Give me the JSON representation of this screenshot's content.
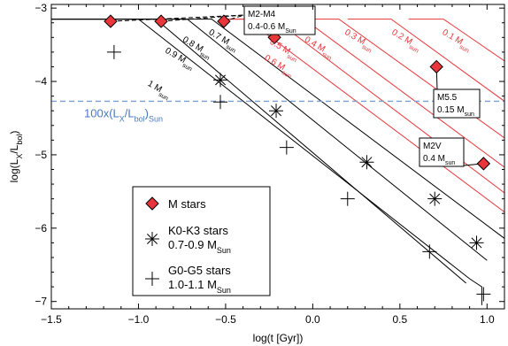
{
  "chart_data": {
    "type": "line",
    "title": "",
    "xlabel": "log(t [Gyr])",
    "ylabel": "log(L_X/L_bol)",
    "xlim": [
      -1.5,
      1.1
    ],
    "ylim": [
      -7.1,
      -2.95
    ],
    "xticks": [
      -1.5,
      -1.0,
      -0.5,
      0.0,
      0.5,
      1.0
    ],
    "xtick_labels": [
      "−1.5",
      "−1.0",
      "−0.5",
      "0.0",
      "0.5",
      "1.0"
    ],
    "yticks": [
      -3,
      -4,
      -5,
      -6,
      -7
    ],
    "ytick_labels": [
      "−3",
      "−4",
      "−5",
      "−6",
      "−7"
    ],
    "grid": false,
    "legend_position": "bottom-left",
    "colors": {
      "axes": "#000000",
      "black_tracks": "#000000",
      "red_tracks": "#e8363a",
      "marker_red": "#e8363a",
      "reference_line": "#7b9fd4"
    },
    "reference_line": {
      "y": -4.27,
      "label": "100x(L",
      "label_sub1": "X",
      "label_mid": "/L",
      "label_sub2": "bol",
      "label_end": ")",
      "label_sub3": "Sun"
    },
    "series": [
      {
        "mass": "1",
        "mass_unit": "M",
        "mass_sub": "sun",
        "color": "black",
        "x": [
          -1.5,
          -1.0,
          0.9,
          0.97,
          0.97
        ],
        "y": [
          -3.15,
          -3.15,
          -6.69,
          -6.8,
          -7.05
        ]
      },
      {
        "mass": "0.9",
        "mass_unit": "M",
        "mass_sub": "sun",
        "color": "black",
        "x": [
          -1.5,
          -0.9,
          0.88
        ],
        "y": [
          -3.15,
          -3.15,
          -6.75
        ]
      },
      {
        "mass": "0.8",
        "mass_unit": "M",
        "mass_sub": "sun",
        "color": "black",
        "x": [
          -1.5,
          -0.72,
          1.0
        ],
        "y": [
          -3.15,
          -3.15,
          -6.44
        ]
      },
      {
        "mass": "0.7",
        "mass_unit": "M",
        "mass_sub": "sun",
        "color": "black",
        "x": [
          -1.5,
          -0.58,
          1.1
        ],
        "y": [
          -3.15,
          -3.15,
          -6.14
        ]
      },
      {
        "mass": "0.6",
        "mass_unit": "M",
        "mass_sub": "sun",
        "color": "red",
        "x": [
          -0.5,
          -0.38,
          1.1
        ],
        "y": [
          -3.15,
          -3.15,
          -5.78
        ]
      },
      {
        "mass": "0.5",
        "mass_unit": "M",
        "mass_sub": "sun",
        "color": "red",
        "x": [
          -0.5,
          -0.22,
          1.1
        ],
        "y": [
          -3.15,
          -3.15,
          -5.52
        ]
      },
      {
        "mass": "0.4",
        "mass_unit": "M",
        "mass_sub": "sun",
        "color": "red",
        "x": [
          -0.3,
          -0.05,
          1.1
        ],
        "y": [
          -3.15,
          -3.15,
          -5.17
        ]
      },
      {
        "mass": "0.3",
        "mass_unit": "M",
        "mass_sub": "sun",
        "color": "red",
        "x": [
          -0.1,
          0.15,
          1.1
        ],
        "y": [
          -3.15,
          -3.15,
          -4.77
        ]
      },
      {
        "mass": "0.2",
        "mass_unit": "M",
        "mass_sub": "sun",
        "color": "red",
        "x": [
          0.2,
          0.45,
          1.1
        ],
        "y": [
          -3.15,
          -3.15,
          -4.27
        ]
      },
      {
        "mass": "0.1",
        "mass_unit": "M",
        "mass_sub": "sun",
        "color": "red",
        "x": [
          0.55,
          0.75,
          1.1
        ],
        "y": [
          -3.15,
          -3.15,
          -3.72
        ]
      }
    ],
    "track_labels": [
      {
        "mass": "1",
        "x": -0.95,
        "y": -4.05,
        "color": "black"
      },
      {
        "mass": "0.9",
        "x": -0.85,
        "y": -3.6,
        "color": "black"
      },
      {
        "mass": "0.8",
        "x": -0.75,
        "y": -3.45,
        "color": "black"
      },
      {
        "mass": "0.7",
        "x": -0.6,
        "y": -3.35,
        "color": "black"
      },
      {
        "mass": "0.6",
        "x": -0.28,
        "y": -3.7,
        "color": "red"
      },
      {
        "mass": "0.5",
        "x": -0.25,
        "y": -3.48,
        "color": "red"
      },
      {
        "mass": "0.4",
        "x": -0.05,
        "y": -3.45,
        "color": "red"
      },
      {
        "mass": "0.3",
        "x": 0.18,
        "y": -3.35,
        "color": "red"
      },
      {
        "mass": "0.2",
        "x": 0.45,
        "y": -3.35,
        "color": "red"
      },
      {
        "mass": "0.1",
        "x": 0.74,
        "y": -3.35,
        "color": "red"
      }
    ],
    "m_stars": {
      "x": [
        -1.16,
        -0.87,
        -0.51,
        -0.22,
        0.71,
        0.98
      ],
      "y": [
        -3.18,
        -3.18,
        -3.18,
        -3.4,
        -3.8,
        -5.12
      ]
    },
    "k_stars": {
      "x": [
        -0.53,
        -0.21,
        0.31,
        0.7,
        0.94
      ],
      "y": [
        -3.98,
        -4.4,
        -5.1,
        -5.6,
        -6.2
      ]
    },
    "g_stars": {
      "x": [
        -1.14,
        -0.53,
        -0.15,
        0.2,
        0.67,
        0.98
      ],
      "y": [
        -3.6,
        -4.28,
        -4.9,
        -5.6,
        -6.32,
        -6.9
      ]
    },
    "annotations": [
      {
        "id": "m2m4",
        "line1": "M2-M4",
        "line2": "0.4-0.6 M",
        "sub": "Sun"
      },
      {
        "id": "m55",
        "line1": "M5.5",
        "line2": "0.15 M",
        "sub": "sun"
      },
      {
        "id": "m2v",
        "line1": "M2V",
        "line2": "0.4 M",
        "sub": "sun"
      }
    ],
    "legend": [
      {
        "marker": "diamond",
        "line1": "M stars",
        "line2": "",
        "sub": ""
      },
      {
        "marker": "asterisk",
        "line1": "K0-K3 stars",
        "line2": "0.7-0.9 M",
        "sub": "Sun"
      },
      {
        "marker": "plus",
        "line1": "G0-G5 stars",
        "line2": "1.0-1.1 M",
        "sub": "Sun"
      }
    ]
  }
}
